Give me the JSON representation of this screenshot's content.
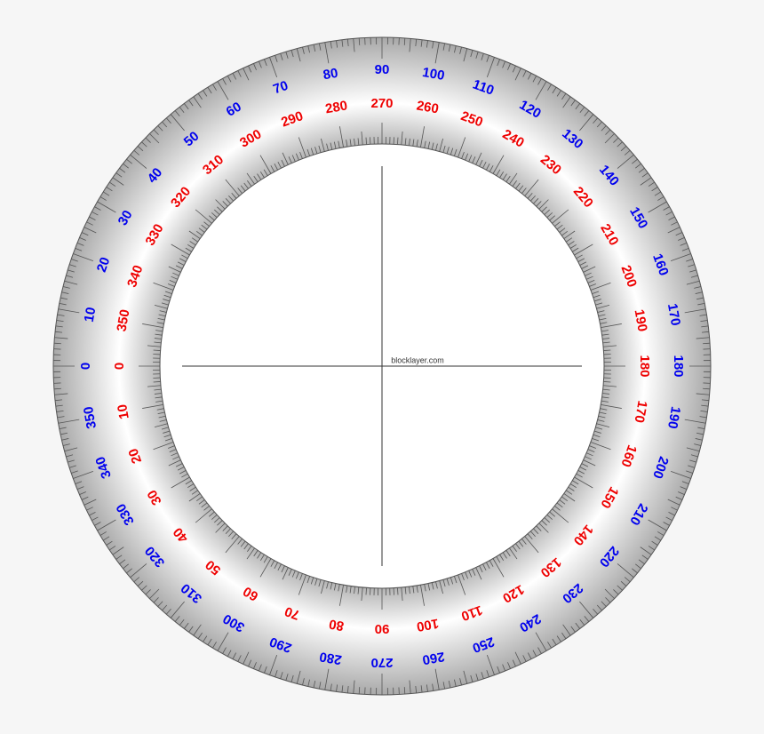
{
  "outer_scale": {
    "labels": [
      0,
      10,
      20,
      30,
      40,
      50,
      60,
      70,
      80,
      90,
      100,
      110,
      120,
      130,
      140,
      150,
      160,
      170,
      180,
      190,
      200,
      210,
      220,
      230,
      240,
      250,
      260,
      270,
      280,
      290,
      300,
      310,
      320,
      330,
      340,
      350
    ]
  },
  "inner_scale": {
    "labels": [
      0,
      10,
      20,
      30,
      40,
      50,
      60,
      70,
      80,
      90,
      100,
      110,
      120,
      130,
      140,
      150,
      160,
      170,
      180,
      190,
      200,
      210,
      220,
      230,
      240,
      250,
      260,
      270,
      280,
      290,
      300,
      310,
      320,
      330,
      340,
      350
    ]
  },
  "watermark": "blocklayer.com"
}
